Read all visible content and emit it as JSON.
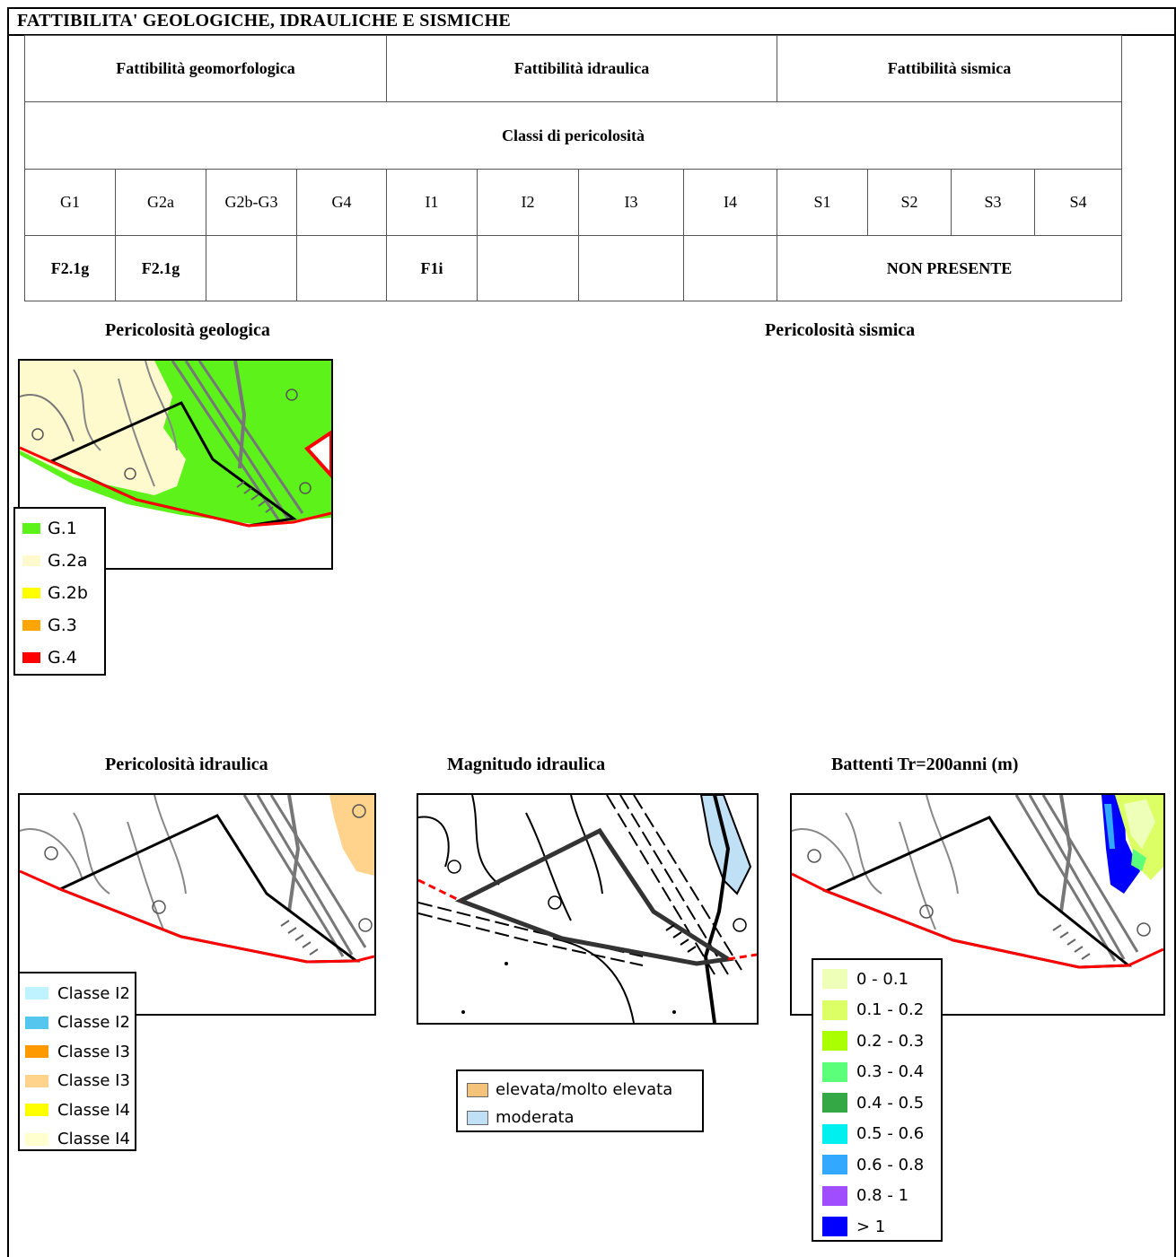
{
  "heading": "FATTIBILITA' GEOLOGICHE, IDRAULICHE E SISMICHE",
  "table": {
    "groups": [
      "Fattibilità geomorfologica",
      "Fattibilità idraulica",
      "Fattibilità sismica"
    ],
    "classes_title": "Classi di pericolosità",
    "classes": [
      "G1",
      "G2a",
      "G2b-G3",
      "G4",
      "I1",
      "I2",
      "I3",
      "I4",
      "S1",
      "S2",
      "S3",
      "S4"
    ],
    "values": {
      "G1": "F2.1g",
      "G2a": "F2.1g",
      "G2b_G3": "",
      "G4": "",
      "I1": "F1i",
      "I2": "",
      "I3": "",
      "I4": "",
      "sismica": "NON PRESENTE"
    }
  },
  "sections": {
    "geologica": "Pericolosità geologica",
    "sismica": "Pericolosità sismica",
    "idraulica": "Pericolosità idraulica",
    "magnitudo": "Magnitudo idraulica",
    "battenti": "Battenti Tr=200anni (m)"
  },
  "legends": {
    "geologica": [
      {
        "label": "G.1",
        "color": "#5cf21a"
      },
      {
        "label": "G.2a",
        "color": "#fffacd"
      },
      {
        "label": "G.2b",
        "color": "#ffff00"
      },
      {
        "label": "G.3",
        "color": "#ffa500"
      },
      {
        "label": "G.4",
        "color": "#ff0000"
      }
    ],
    "idraulica": [
      {
        "label": "Classe I2",
        "color": "#bff3ff"
      },
      {
        "label": "Classe I2",
        "color": "#55c6ee"
      },
      {
        "label": "Classe I3",
        "color": "#ff9900"
      },
      {
        "label": "Classe I3",
        "color": "#ffd38c"
      },
      {
        "label": "Classe I4",
        "color": "#ffff00"
      },
      {
        "label": "Classe I4",
        "color": "#ffffd0"
      }
    ],
    "magnitudo": [
      {
        "label": "elevata/molto elevata",
        "color": "#f5c27a"
      },
      {
        "label": "moderata",
        "color": "#bfe0f5"
      }
    ],
    "battenti": [
      {
        "label": "0 - 0.1",
        "color": "#eeffb8"
      },
      {
        "label": "0.1 - 0.2",
        "color": "#dcff66"
      },
      {
        "label": "0.2 - 0.3",
        "color": "#aaff00"
      },
      {
        "label": "0.3 - 0.4",
        "color": "#5cff7a"
      },
      {
        "label": "0.4 - 0.5",
        "color": "#33a844"
      },
      {
        "label": "0.5 - 0.6",
        "color": "#00f0f0"
      },
      {
        "label": "0.6 - 0.8",
        "color": "#33a8ff"
      },
      {
        "label": "0.8 - 1",
        "color": "#a04cff"
      },
      {
        "label": "> 1",
        "color": "#0000ff"
      }
    ]
  }
}
